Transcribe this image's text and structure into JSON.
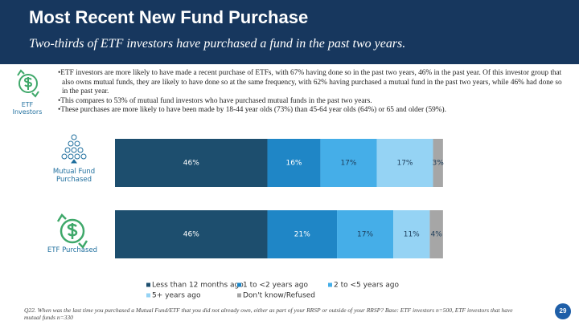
{
  "header": {
    "title": "Most Recent New Fund Purchase",
    "subtitle": "Two-thirds of ETF investors have purchased a fund in the past two years."
  },
  "sidebar_label": "ETF Investors",
  "bullets": [
    "ETF investors are more likely to have made a recent purchase of ETFs, with 67% having done so in the past two years, 46% in the past year. Of this investor group that also owns mutual funds, they are likely to have done so at the same frequency, with 62% having purchased a mutual fund in the past two years, while 46% had done so in the past year.",
    "This compares to 53% of mutual fund investors who have purchased mutual funds in the past two years.",
    "These purchases are more likely to have been made by 18-44 year olds (73%) than 45-64 year olds (64%) or 65 and older (59%)."
  ],
  "chart_data": {
    "type": "stacked_bar",
    "orientation": "horizontal",
    "categories": [
      "Mutual Fund Purchased",
      "ETF Purchased"
    ],
    "series": [
      {
        "name": "Less than 12 months ago",
        "color": "#1d4e6e",
        "values": [
          46,
          46
        ],
        "value_labels": [
          "46%",
          "46%"
        ]
      },
      {
        "name": "1 to <2 years ago",
        "color": "#1f86c6",
        "values": [
          16,
          21
        ],
        "value_labels": [
          "16%",
          "21%"
        ]
      },
      {
        "name": "2 to <5 years ago",
        "color": "#45aee8",
        "values": [
          17,
          17
        ],
        "value_labels": [
          "17%",
          "17%"
        ]
      },
      {
        "name": "5+ years ago",
        "color": "#95d3f4",
        "values": [
          17,
          11
        ],
        "value_labels": [
          "17%",
          "11%"
        ]
      },
      {
        "name": "Don't know/Refused",
        "color": "#a6a6a6",
        "values": [
          3,
          4
        ],
        "value_labels": [
          "3%",
          "4%"
        ]
      }
    ]
  },
  "footnote": "Q22. When was the last time you purchased a Mutual Fund/ETF that you did not already own, either as part of your RRSP or outside of your RRSP? Base: ETF investors n=500, ETF investors that have mutual funds n=330",
  "page_number": "29"
}
